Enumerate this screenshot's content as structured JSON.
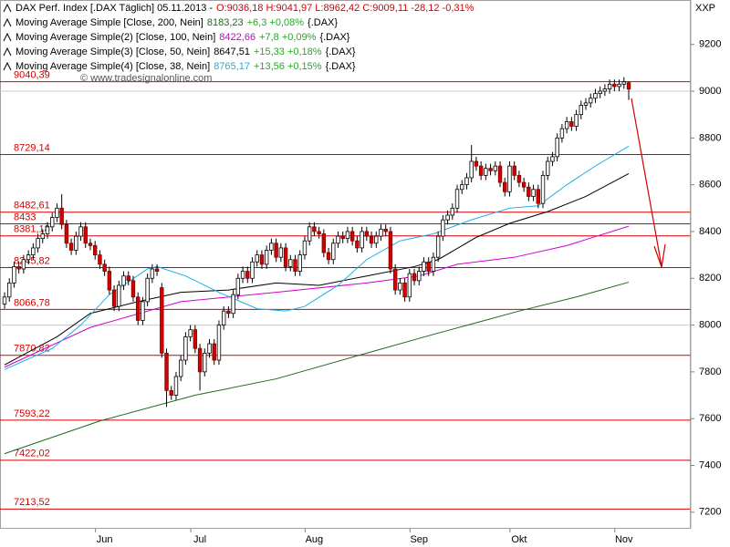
{
  "chart_data": {
    "type": "candlestick",
    "title": "DAX Perf. Index [.DAX  Täglich] 05.11.2013 -",
    "quote": "O:9036,18 H:9041,97 L:8962,42 C:9009,11 -28,12 -0,31%",
    "symbol": "{.DAX}",
    "axis_label": "XXP",
    "watermark": "© www.tradesignalonline.com",
    "categories": [
      null,
      null,
      null,
      null,
      null,
      null,
      null,
      null,
      null,
      null,
      null,
      null,
      null,
      null,
      null,
      null,
      null,
      null,
      null,
      null,
      null,
      "Jun",
      null,
      null,
      null,
      null,
      null,
      null,
      null,
      null,
      null,
      null,
      null,
      null,
      null,
      null,
      null,
      null,
      null,
      null,
      null,
      "Jul",
      null,
      null,
      null,
      null,
      null,
      null,
      null,
      null,
      null,
      null,
      null,
      null,
      null,
      null,
      null,
      null,
      null,
      null,
      null,
      null,
      null,
      null,
      null,
      "Aug",
      null,
      null,
      null,
      null,
      null,
      null,
      null,
      null,
      null,
      null,
      null,
      null,
      null,
      null,
      null,
      null,
      null,
      null,
      null,
      null,
      null,
      "Sep",
      null,
      null,
      null,
      null,
      null,
      null,
      null,
      null,
      null,
      null,
      null,
      null,
      null,
      null,
      null,
      null,
      null,
      null,
      null,
      null,
      "Okt",
      null,
      null,
      null,
      null,
      null,
      null,
      null,
      null,
      null,
      null,
      null,
      null,
      null,
      null,
      null,
      null,
      null,
      null,
      null,
      null,
      null,
      "Nov",
      null
    ],
    "candles": {
      "up_color": "#ffffff",
      "down_color": "#d40000",
      "open": [
        8090,
        8120,
        8180,
        8250,
        8240,
        8280,
        8300,
        8330,
        8370,
        8390,
        8420,
        8460,
        8500,
        8430,
        8350,
        8320,
        8380,
        8420,
        8350,
        8340,
        8300,
        8260,
        8230,
        8150,
        8080,
        8170,
        8210,
        8190,
        8120,
        8020,
        8100,
        8200,
        8240,
        8160,
        7880,
        7720,
        7700,
        7780,
        7850,
        7950,
        7980,
        7900,
        7800,
        7880,
        7920,
        7850,
        8000,
        8060,
        8050,
        8130,
        8200,
        8230,
        8200,
        8270,
        8300,
        8260,
        8320,
        8350,
        8290,
        8330,
        8250,
        8280,
        8230,
        8300,
        8360,
        8420,
        8400,
        8390,
        8310,
        8280,
        8350,
        8380,
        8370,
        8400,
        8360,
        8330,
        8400,
        8380,
        8350,
        8380,
        8410,
        8400,
        8240,
        8150,
        8180,
        8120,
        8220,
        8190,
        8230,
        8270,
        8230,
        8290,
        8380,
        8450,
        8470,
        8500,
        8580,
        8600,
        8630,
        8700,
        8680,
        8640,
        8670,
        8660,
        8680,
        8610,
        8570,
        8680,
        8640,
        8610,
        8590,
        8550,
        8580,
        8520,
        8640,
        8700,
        8720,
        8800,
        8840,
        8870,
        8850,
        8900,
        8940,
        8950,
        8970,
        8990,
        9000,
        9010,
        9030,
        9020,
        9030,
        9036.18
      ],
      "high": [
        8140,
        8200,
        8270,
        8270,
        8300,
        8320,
        8350,
        8390,
        8410,
        8440,
        8480,
        8520,
        8560,
        8450,
        8370,
        8400,
        8440,
        8440,
        8370,
        8360,
        8320,
        8280,
        8250,
        8170,
        8190,
        8230,
        8230,
        8210,
        8140,
        8120,
        8220,
        8260,
        8260,
        8180,
        7900,
        7740,
        7800,
        7870,
        7970,
        8000,
        8000,
        7920,
        7900,
        7940,
        7940,
        8020,
        8080,
        8080,
        8150,
        8220,
        8250,
        8250,
        8290,
        8320,
        8320,
        8340,
        8370,
        8370,
        8350,
        8350,
        8300,
        8300,
        8320,
        8380,
        8440,
        8440,
        8420,
        8410,
        8330,
        8370,
        8400,
        8400,
        8420,
        8420,
        8380,
        8420,
        8420,
        8400,
        8400,
        8430,
        8430,
        8420,
        8260,
        8200,
        8200,
        8240,
        8240,
        8250,
        8290,
        8290,
        8310,
        8400,
        8470,
        8490,
        8520,
        8600,
        8620,
        8650,
        8770,
        8720,
        8700,
        8690,
        8690,
        8700,
        8700,
        8630,
        8700,
        8700,
        8660,
        8630,
        8610,
        8600,
        8600,
        8660,
        8720,
        8740,
        8820,
        8860,
        8890,
        8890,
        8920,
        8960,
        8970,
        8990,
        9010,
        9020,
        9030,
        9050,
        9050,
        9050,
        9060,
        9041.97
      ],
      "low": [
        8070,
        8100,
        8160,
        8220,
        8220,
        8260,
        8280,
        8310,
        8350,
        8370,
        8400,
        8440,
        8410,
        8330,
        8300,
        8300,
        8360,
        8330,
        8320,
        8280,
        8240,
        8210,
        8130,
        8060,
        8060,
        8150,
        8170,
        8100,
        8000,
        8000,
        8080,
        8180,
        8210,
        7860,
        7650,
        7680,
        7680,
        7760,
        7830,
        7930,
        7880,
        7720,
        7780,
        7860,
        7830,
        7830,
        7980,
        8030,
        8030,
        8110,
        8180,
        8180,
        8180,
        8250,
        8240,
        8240,
        8300,
        8270,
        8270,
        8230,
        8230,
        8210,
        8210,
        8280,
        8340,
        8380,
        8370,
        8290,
        8260,
        8260,
        8330,
        8350,
        8350,
        8340,
        8310,
        8310,
        8360,
        8330,
        8330,
        8360,
        8380,
        8220,
        8130,
        8130,
        8100,
        8100,
        8170,
        8170,
        8210,
        8210,
        8210,
        8270,
        8360,
        8430,
        8450,
        8480,
        8560,
        8580,
        8610,
        8660,
        8620,
        8620,
        8640,
        8640,
        8590,
        8550,
        8550,
        8620,
        8590,
        8570,
        8530,
        8530,
        8500,
        8500,
        8620,
        8680,
        8700,
        8780,
        8820,
        8830,
        8830,
        8880,
        8920,
        8930,
        8950,
        8970,
        8980,
        8990,
        9000,
        9000,
        9010,
        8962.42
      ],
      "close": [
        8120,
        8180,
        8250,
        8240,
        8280,
        8300,
        8330,
        8370,
        8390,
        8420,
        8460,
        8500,
        8430,
        8350,
        8320,
        8380,
        8420,
        8350,
        8340,
        8300,
        8260,
        8230,
        8150,
        8080,
        8170,
        8210,
        8190,
        8120,
        8020,
        8100,
        8200,
        8240,
        8230,
        7880,
        7720,
        7700,
        7780,
        7850,
        7950,
        7980,
        7900,
        7800,
        7880,
        7920,
        7850,
        8000,
        8060,
        8050,
        8130,
        8200,
        8230,
        8200,
        8270,
        8300,
        8260,
        8320,
        8350,
        8290,
        8330,
        8250,
        8280,
        8230,
        8300,
        8360,
        8420,
        8400,
        8390,
        8310,
        8280,
        8350,
        8380,
        8370,
        8400,
        8360,
        8330,
        8400,
        8380,
        8350,
        8380,
        8410,
        8400,
        8240,
        8150,
        8180,
        8120,
        8220,
        8190,
        8230,
        8270,
        8230,
        8290,
        8380,
        8450,
        8470,
        8500,
        8580,
        8600,
        8630,
        8700,
        8680,
        8640,
        8670,
        8660,
        8680,
        8610,
        8570,
        8680,
        8640,
        8610,
        8590,
        8550,
        8580,
        8520,
        8640,
        8700,
        8720,
        8800,
        8840,
        8870,
        8850,
        8900,
        8940,
        8950,
        8970,
        8990,
        9000,
        9010,
        9030,
        9020,
        9030,
        9040,
        9009.11
      ]
    },
    "moving_averages": [
      {
        "name": "Moving Average Simple [Close, 200, Nein]",
        "value_text": "8183,23",
        "change_text": "+6,3 +0,08%",
        "color": "#1e6b1e",
        "x": [
          0,
          20,
          40,
          57,
          76,
          90,
          108,
          120,
          131
        ],
        "values": [
          7450,
          7590,
          7700,
          7770,
          7880,
          7960,
          8060,
          8120,
          8183.23
        ]
      },
      {
        "name": "Moving Average Simple(2) [Close, 100, Nein]",
        "value_text": "8422,66",
        "change_text": "+7,8 +0,09%",
        "color": "#d000d0",
        "x": [
          0,
          18,
          37,
          57,
          76,
          87,
          95,
          107,
          118,
          131
        ],
        "values": [
          7820,
          7990,
          8100,
          8140,
          8180,
          8210,
          8260,
          8290,
          8340,
          8422.66
        ]
      },
      {
        "name": "Moving Average Simple(3) [Close, 50, Nein]",
        "value_text": "8647,51",
        "change_text": "+15,33 +0,18%",
        "color": "#000000",
        "x": [
          0,
          11,
          18,
          28,
          37,
          47,
          57,
          66,
          76,
          86,
          91,
          99,
          106,
          114,
          122,
          131
        ],
        "values": [
          7830,
          7950,
          8050,
          8100,
          8140,
          8150,
          8180,
          8170,
          8210,
          8250,
          8280,
          8375,
          8435,
          8485,
          8550,
          8647.51
        ]
      },
      {
        "name": "Moving Average Simple(4) [Close, 38, Nein]",
        "value_text": "8765,17",
        "change_text": "+13,56 +0,15%",
        "color": "#1ab0e8",
        "x": [
          0,
          10,
          16,
          22,
          30,
          32,
          38,
          45,
          53,
          59,
          63,
          70,
          76,
          83,
          90,
          98,
          106,
          112,
          118,
          124,
          131
        ],
        "values": [
          7810,
          7900,
          8000,
          8130,
          8240,
          8250,
          8210,
          8140,
          8070,
          8060,
          8080,
          8170,
          8280,
          8360,
          8390,
          8450,
          8500,
          8510,
          8600,
          8680,
          8765.17
        ]
      }
    ],
    "change_color": "#22aa22",
    "levels": [
      {
        "value": 9040.39,
        "label": "9040,39"
      },
      {
        "value": 8729.14,
        "label": "8729,14"
      },
      {
        "value": 8482.61,
        "label": "8482,61"
      },
      {
        "value": 8433,
        "label": "8433"
      },
      {
        "value": 8381.18,
        "label": "8381,18"
      },
      {
        "value": 8245.82,
        "label": "8245,82"
      },
      {
        "value": 8066.78,
        "label": "8066,78"
      },
      {
        "value": 7870.82,
        "label": "7870,82"
      },
      {
        "value": 7593.22,
        "label": "7593,22"
      },
      {
        "value": 7422.02,
        "label": "7422,02"
      },
      {
        "value": 7213.52,
        "label": "7213,52"
      }
    ],
    "level_color": "#d40000",
    "grid_lines": [
      8000,
      9000
    ],
    "ylim": [
      7129,
      9390
    ],
    "yticks": [
      7200,
      7400,
      7600,
      7800,
      8000,
      8200,
      8400,
      8600,
      8800,
      9000,
      9200
    ]
  }
}
